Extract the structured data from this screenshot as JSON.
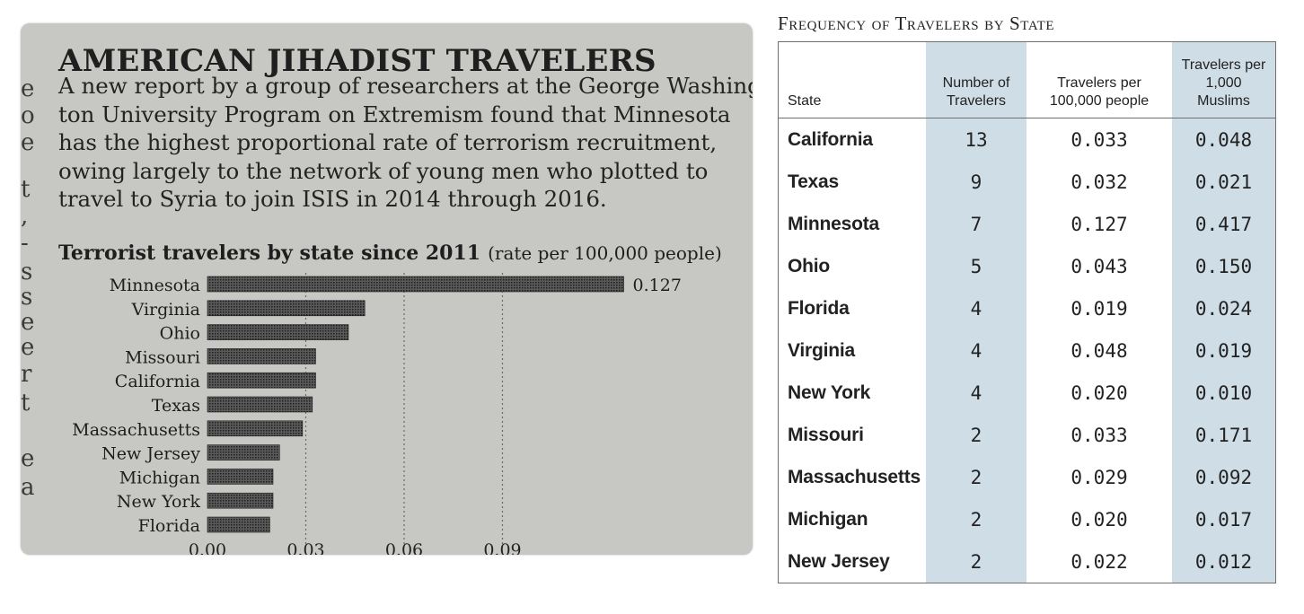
{
  "news": {
    "title": "AMERICAN JIHADIST TRAVELERS",
    "body_lines": [
      "A new report by a group of researchers at the George Washing-",
      "ton University Program on Extremism found that Minnesota",
      "has the highest proportional rate of terrorism recruitment,",
      "owing largely to the network of young men who plotted to",
      "travel to Syria to join ISIS in 2014 through 2016."
    ],
    "edge_glyphs": [
      "e",
      "o",
      "e",
      "t",
      ",",
      "-",
      "s",
      "s",
      "e",
      "e",
      "r",
      "t",
      "e",
      "a"
    ]
  },
  "chart_data": {
    "type": "bar",
    "orientation": "horizontal",
    "title": "Terrorist travelers by state since 2011",
    "subtitle": "(rate per 100,000 people)",
    "categories": [
      "Minnesota",
      "Virginia",
      "Ohio",
      "Missouri",
      "California",
      "Texas",
      "Massachusetts",
      "New Jersey",
      "Michigan",
      "New York",
      "Florida"
    ],
    "values": [
      0.127,
      0.048,
      0.043,
      0.033,
      0.033,
      0.032,
      0.029,
      0.022,
      0.02,
      0.02,
      0.019
    ],
    "data_labels": [
      "0.127",
      "",
      "",
      "",
      "",
      "",
      "",
      "",
      "",
      "",
      ""
    ],
    "x_ticks": [
      0.0,
      0.03,
      0.06,
      0.09
    ],
    "x_tick_labels": [
      "0.00",
      "0.03",
      "0.06",
      "0.09"
    ],
    "xlim": [
      0,
      0.14
    ],
    "grid": "vertical dotted",
    "bar_color": "#2b2b2b"
  },
  "table": {
    "title": "Frequency of Travelers by State",
    "headers": [
      "State",
      "Number of Travelers",
      "Travelers per 100,000 people",
      "Travelers per 1,000 Muslims"
    ],
    "rows": [
      [
        "California",
        "13",
        "0.033",
        "0.048"
      ],
      [
        "Texas",
        "9",
        "0.032",
        "0.021"
      ],
      [
        "Minnesota",
        "7",
        "0.127",
        "0.417"
      ],
      [
        "Ohio",
        "5",
        "0.043",
        "0.150"
      ],
      [
        "Florida",
        "4",
        "0.019",
        "0.024"
      ],
      [
        "Virginia",
        "4",
        "0.048",
        "0.019"
      ],
      [
        "New York",
        "4",
        "0.020",
        "0.010"
      ],
      [
        "Missouri",
        "2",
        "0.033",
        "0.171"
      ],
      [
        "Massachusetts",
        "2",
        "0.029",
        "0.092"
      ],
      [
        "Michigan",
        "2",
        "0.020",
        "0.017"
      ],
      [
        "New Jersey",
        "2",
        "0.022",
        "0.012"
      ]
    ],
    "shaded_column_color": "#cfdde6"
  }
}
